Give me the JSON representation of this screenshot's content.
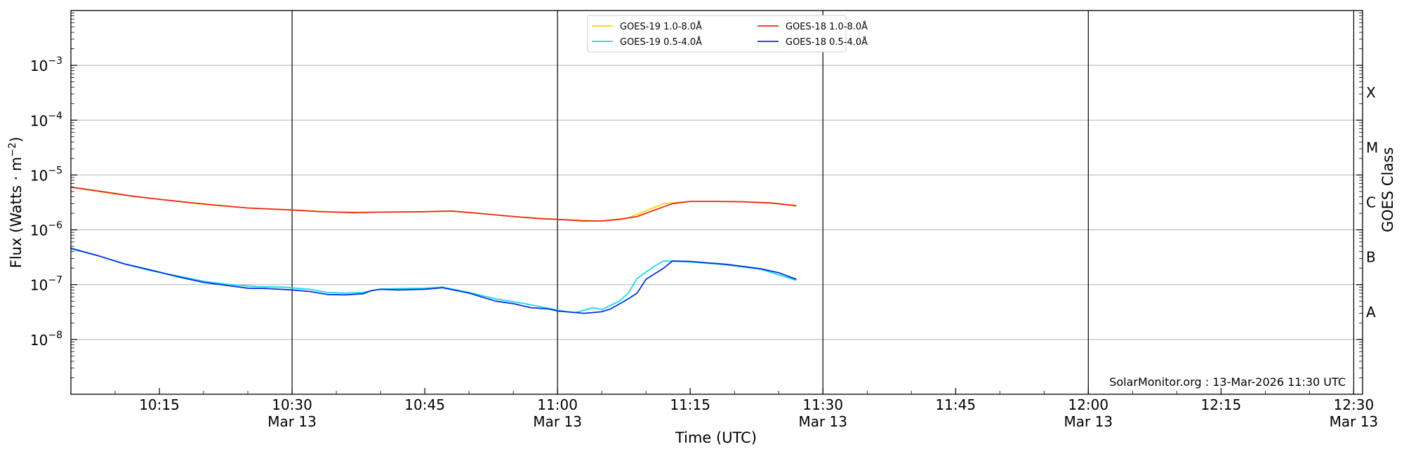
{
  "chart_data": {
    "type": "line",
    "xlabel": "Time (UTC)",
    "ylabel": "Flux (Watts · m",
    "ylabel_sup": "−2",
    "ylabel_tail": ")",
    "right_label": "GOES Class",
    "y_scale": "log",
    "ylim_exp": [
      -9,
      -2
    ],
    "xlim": [
      "10:05",
      "12:31"
    ],
    "y_ticks": [
      {
        "exp": -8,
        "base": "10",
        "sup": "−8"
      },
      {
        "exp": -7,
        "base": "10",
        "sup": "−7"
      },
      {
        "exp": -6,
        "base": "10",
        "sup": "−6"
      },
      {
        "exp": -5,
        "base": "10",
        "sup": "−5"
      },
      {
        "exp": -4,
        "base": "10",
        "sup": "−4"
      },
      {
        "exp": -3,
        "base": "10",
        "sup": "−3"
      }
    ],
    "x_ticks": [
      {
        "t": "10:15",
        "line1": "10:15",
        "line2": ""
      },
      {
        "t": "10:30",
        "line1": "10:30",
        "line2": "Mar 13"
      },
      {
        "t": "10:45",
        "line1": "10:45",
        "line2": ""
      },
      {
        "t": "11:00",
        "line1": "11:00",
        "line2": "Mar 13"
      },
      {
        "t": "11:15",
        "line1": "11:15",
        "line2": ""
      },
      {
        "t": "11:30",
        "line1": "11:30",
        "line2": "Mar 13"
      },
      {
        "t": "11:45",
        "line1": "11:45",
        "line2": ""
      },
      {
        "t": "12:00",
        "line1": "12:00",
        "line2": "Mar 13"
      },
      {
        "t": "12:15",
        "line1": "12:15",
        "line2": ""
      },
      {
        "t": "12:30",
        "line1": "12:30",
        "line2": "Mar 13"
      }
    ],
    "vertical_lines": [
      "10:30",
      "11:00",
      "11:30",
      "12:00",
      "12:30"
    ],
    "goes_classes": [
      {
        "label": "A",
        "exp": -7.5
      },
      {
        "label": "B",
        "exp": -6.5
      },
      {
        "label": "C",
        "exp": -5.5
      },
      {
        "label": "M",
        "exp": -4.5
      },
      {
        "label": "X",
        "exp": -3.5
      }
    ],
    "annotation": "SolarMonitor.org : 13-Mar-2026 11:30 UTC",
    "legend": {
      "position": "top-center"
    },
    "series": [
      {
        "name": "GOES-19 1.0-8.0Å",
        "color": "#ffd700",
        "points": [
          [
            "10:05",
            6e-06
          ],
          [
            "10:10",
            4.5e-06
          ],
          [
            "10:15",
            3.6e-06
          ],
          [
            "10:20",
            2.9e-06
          ],
          [
            "10:25",
            2.5e-06
          ],
          [
            "10:30",
            2.3e-06
          ],
          [
            "10:35",
            2.1e-06
          ],
          [
            "10:40",
            2.1e-06
          ],
          [
            "10:45",
            2.15e-06
          ],
          [
            "10:48",
            2.2e-06
          ],
          [
            "10:55",
            1.75e-06
          ],
          [
            "11:00",
            1.55e-06
          ],
          [
            "11:05",
            1.45e-06
          ],
          [
            "11:08",
            1.65e-06
          ],
          [
            "11:12",
            3e-06
          ],
          [
            "11:15",
            3.3e-06
          ],
          [
            "11:20",
            3.3e-06
          ],
          [
            "11:25",
            3e-06
          ],
          [
            "11:27",
            2.7e-06
          ]
        ]
      },
      {
        "name": "GOES-18 1.0-8.0Å",
        "color": "#e8281e",
        "points": [
          [
            "10:05",
            6e-06
          ],
          [
            "10:07",
            5.4e-06
          ],
          [
            "10:10",
            4.6e-06
          ],
          [
            "10:12",
            4.1e-06
          ],
          [
            "10:15",
            3.6e-06
          ],
          [
            "10:18",
            3.2e-06
          ],
          [
            "10:21",
            2.85e-06
          ],
          [
            "10:25",
            2.5e-06
          ],
          [
            "10:30",
            2.3e-06
          ],
          [
            "10:33",
            2.15e-06
          ],
          [
            "10:37",
            2.05e-06
          ],
          [
            "10:40",
            2.1e-06
          ],
          [
            "10:43",
            2.12e-06
          ],
          [
            "10:45",
            2.14e-06
          ],
          [
            "10:48",
            2.2e-06
          ],
          [
            "10:51",
            2e-06
          ],
          [
            "10:55",
            1.75e-06
          ],
          [
            "10:58",
            1.6e-06
          ],
          [
            "11:00",
            1.55e-06
          ],
          [
            "11:03",
            1.45e-06
          ],
          [
            "11:05",
            1.45e-06
          ],
          [
            "11:07",
            1.55e-06
          ],
          [
            "11:09",
            1.75e-06
          ],
          [
            "11:11",
            2.3e-06
          ],
          [
            "11:13",
            3e-06
          ],
          [
            "11:15",
            3.3e-06
          ],
          [
            "11:18",
            3.3e-06
          ],
          [
            "11:21",
            3.25e-06
          ],
          [
            "11:24",
            3.1e-06
          ],
          [
            "11:27",
            2.75e-06
          ]
        ]
      },
      {
        "name": "GOES-19 0.5-4.0Å",
        "color": "#19d6ea",
        "points": [
          [
            "10:05",
            4.5e-07
          ],
          [
            "10:08",
            3.4e-07
          ],
          [
            "10:11",
            2.4e-07
          ],
          [
            "10:14",
            1.8e-07
          ],
          [
            "10:17",
            1.45e-07
          ],
          [
            "10:20",
            1.15e-07
          ],
          [
            "10:23",
            1e-07
          ],
          [
            "10:26",
            9.2e-08
          ],
          [
            "10:29",
            9e-08
          ],
          [
            "10:32",
            8.2e-08
          ],
          [
            "10:34",
            7.2e-08
          ],
          [
            "10:36",
            7e-08
          ],
          [
            "10:38",
            7.2e-08
          ],
          [
            "10:40",
            8.3e-08
          ],
          [
            "10:43",
            8.5e-08
          ],
          [
            "10:45",
            8.6e-08
          ],
          [
            "10:47",
            9e-08
          ],
          [
            "10:50",
            7.2e-08
          ],
          [
            "10:53",
            5.5e-08
          ],
          [
            "10:56",
            4.6e-08
          ],
          [
            "10:59",
            3.7e-08
          ],
          [
            "11:01",
            3.2e-08
          ],
          [
            "11:02",
            3.1e-08
          ],
          [
            "11:04",
            3.8e-08
          ],
          [
            "11:05",
            3.5e-08
          ],
          [
            "11:07",
            5e-08
          ],
          [
            "11:08",
            7e-08
          ],
          [
            "11:09",
            1.3e-07
          ],
          [
            "11:11",
            2.2e-07
          ],
          [
            "11:12",
            2.7e-07
          ],
          [
            "11:15",
            2.6e-07
          ],
          [
            "11:19",
            2.3e-07
          ],
          [
            "11:23",
            1.9e-07
          ],
          [
            "11:27",
            1.2e-07
          ]
        ]
      },
      {
        "name": "GOES-18 0.5-4.0Å",
        "color": "#0033dd",
        "points": [
          [
            "10:05",
            4.6e-07
          ],
          [
            "10:08",
            3.4e-07
          ],
          [
            "10:11",
            2.4e-07
          ],
          [
            "10:14",
            1.85e-07
          ],
          [
            "10:17",
            1.4e-07
          ],
          [
            "10:20",
            1.1e-07
          ],
          [
            "10:23",
            9.5e-08
          ],
          [
            "10:25",
            8.6e-08
          ],
          [
            "10:27",
            8.5e-08
          ],
          [
            "10:30",
            8e-08
          ],
          [
            "10:32",
            7.5e-08
          ],
          [
            "10:34",
            6.6e-08
          ],
          [
            "10:36",
            6.5e-08
          ],
          [
            "10:38",
            6.8e-08
          ],
          [
            "10:39",
            7.8e-08
          ],
          [
            "10:40",
            8.2e-08
          ],
          [
            "10:42",
            8e-08
          ],
          [
            "10:45",
            8.2e-08
          ],
          [
            "10:47",
            8.8e-08
          ],
          [
            "10:50",
            7e-08
          ],
          [
            "10:53",
            5e-08
          ],
          [
            "10:55",
            4.5e-08
          ],
          [
            "10:57",
            3.8e-08
          ],
          [
            "10:59",
            3.6e-08
          ],
          [
            "11:00",
            3.3e-08
          ],
          [
            "11:02",
            3.1e-08
          ],
          [
            "11:03",
            3e-08
          ],
          [
            "11:05",
            3.2e-08
          ],
          [
            "11:06",
            3.6e-08
          ],
          [
            "11:08",
            5.5e-08
          ],
          [
            "11:09",
            7e-08
          ],
          [
            "11:10",
            1.25e-07
          ],
          [
            "11:12",
            2e-07
          ],
          [
            "11:13",
            2.7e-07
          ],
          [
            "11:15",
            2.65e-07
          ],
          [
            "11:19",
            2.35e-07
          ],
          [
            "11:23",
            1.95e-07
          ],
          [
            "11:25",
            1.65e-07
          ],
          [
            "11:27",
            1.25e-07
          ]
        ]
      }
    ]
  }
}
